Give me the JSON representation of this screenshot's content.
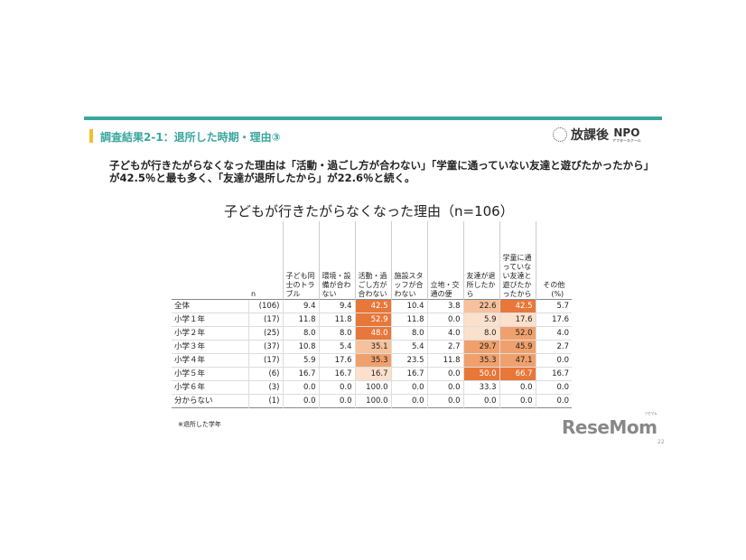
{
  "header": {
    "section_title": "調査結果2-1：退所した時期・理由③",
    "logo_text": "放課後",
    "logo_npo": "NPO",
    "logo_sub": "アフタースクール"
  },
  "lead": "子どもが行きたがらなくなった理由は「活動・過ごし方が合わない」「学童に通っていない友達と遊びたかったから」が42.5％と最も多く、「友達が退所したから」が22.6％と続く。",
  "table_title": "子どもが行きたがらなくなった理由（n=106）",
  "table": {
    "n_header": "n",
    "columns": [
      "子ども同士のトラブル",
      "環境・設備が合わない",
      "活動・過ごし方が合わない",
      "施設スタッフが合わない",
      "立地・交通の便",
      "友達が退所したから",
      "学童に通っていない友達と遊びたかったから",
      "その他"
    ],
    "unit": "(%)",
    "rows": [
      {
        "label": "全体",
        "n": "(106)",
        "values": [
          "9.4",
          "9.4",
          "42.5",
          "10.4",
          "3.8",
          "22.6",
          "42.5",
          "5.7"
        ],
        "shading": [
          0,
          0,
          4,
          0,
          0,
          2,
          4,
          0
        ]
      },
      {
        "label": "小学１年",
        "n": "(17)",
        "values": [
          "11.8",
          "11.8",
          "52.9",
          "11.8",
          "0.0",
          "5.9",
          "17.6",
          "17.6"
        ],
        "shading": [
          0,
          0,
          4,
          0,
          0,
          1,
          1,
          0
        ]
      },
      {
        "label": "小学２年",
        "n": "(25)",
        "values": [
          "8.0",
          "8.0",
          "48.0",
          "8.0",
          "4.0",
          "8.0",
          "52.0",
          "4.0"
        ],
        "shading": [
          0,
          0,
          4,
          0,
          0,
          1,
          3,
          0
        ]
      },
      {
        "label": "小学３年",
        "n": "(37)",
        "values": [
          "10.8",
          "5.4",
          "35.1",
          "5.4",
          "2.7",
          "29.7",
          "45.9",
          "2.7"
        ],
        "shading": [
          0,
          0,
          2,
          0,
          0,
          3,
          3,
          0
        ]
      },
      {
        "label": "小学４年",
        "n": "(17)",
        "values": [
          "5.9",
          "17.6",
          "35.3",
          "23.5",
          "11.8",
          "35.3",
          "47.1",
          "0.0"
        ],
        "shading": [
          0,
          0,
          3,
          0,
          0,
          3,
          3,
          0
        ]
      },
      {
        "label": "小学５年",
        "n": "(6)",
        "values": [
          "16.7",
          "16.7",
          "16.7",
          "16.7",
          "0.0",
          "50.0",
          "66.7",
          "16.7"
        ],
        "shading": [
          0,
          0,
          1,
          0,
          0,
          4,
          4,
          0
        ]
      },
      {
        "label": "小学６年",
        "n": "(3)",
        "values": [
          "0.0",
          "0.0",
          "100.0",
          "0.0",
          "0.0",
          "33.3",
          "0.0",
          "0.0"
        ],
        "shading": [
          0,
          0,
          0,
          0,
          0,
          0,
          0,
          0
        ]
      },
      {
        "label": "分からない",
        "n": "(1)",
        "values": [
          "0.0",
          "0.0",
          "100.0",
          "0.0",
          "0.0",
          "0.0",
          "0.0",
          "0.0"
        ],
        "shading": [
          0,
          0,
          0,
          0,
          0,
          0,
          0,
          0
        ]
      }
    ]
  },
  "note": "※退所した学年",
  "watermark": "ReseMom",
  "watermark_sub": "リセマム",
  "page_number": "22",
  "colors": {
    "accent": "#3aa79c",
    "marker": "#f0c030",
    "heat_max": "#e8773a"
  }
}
